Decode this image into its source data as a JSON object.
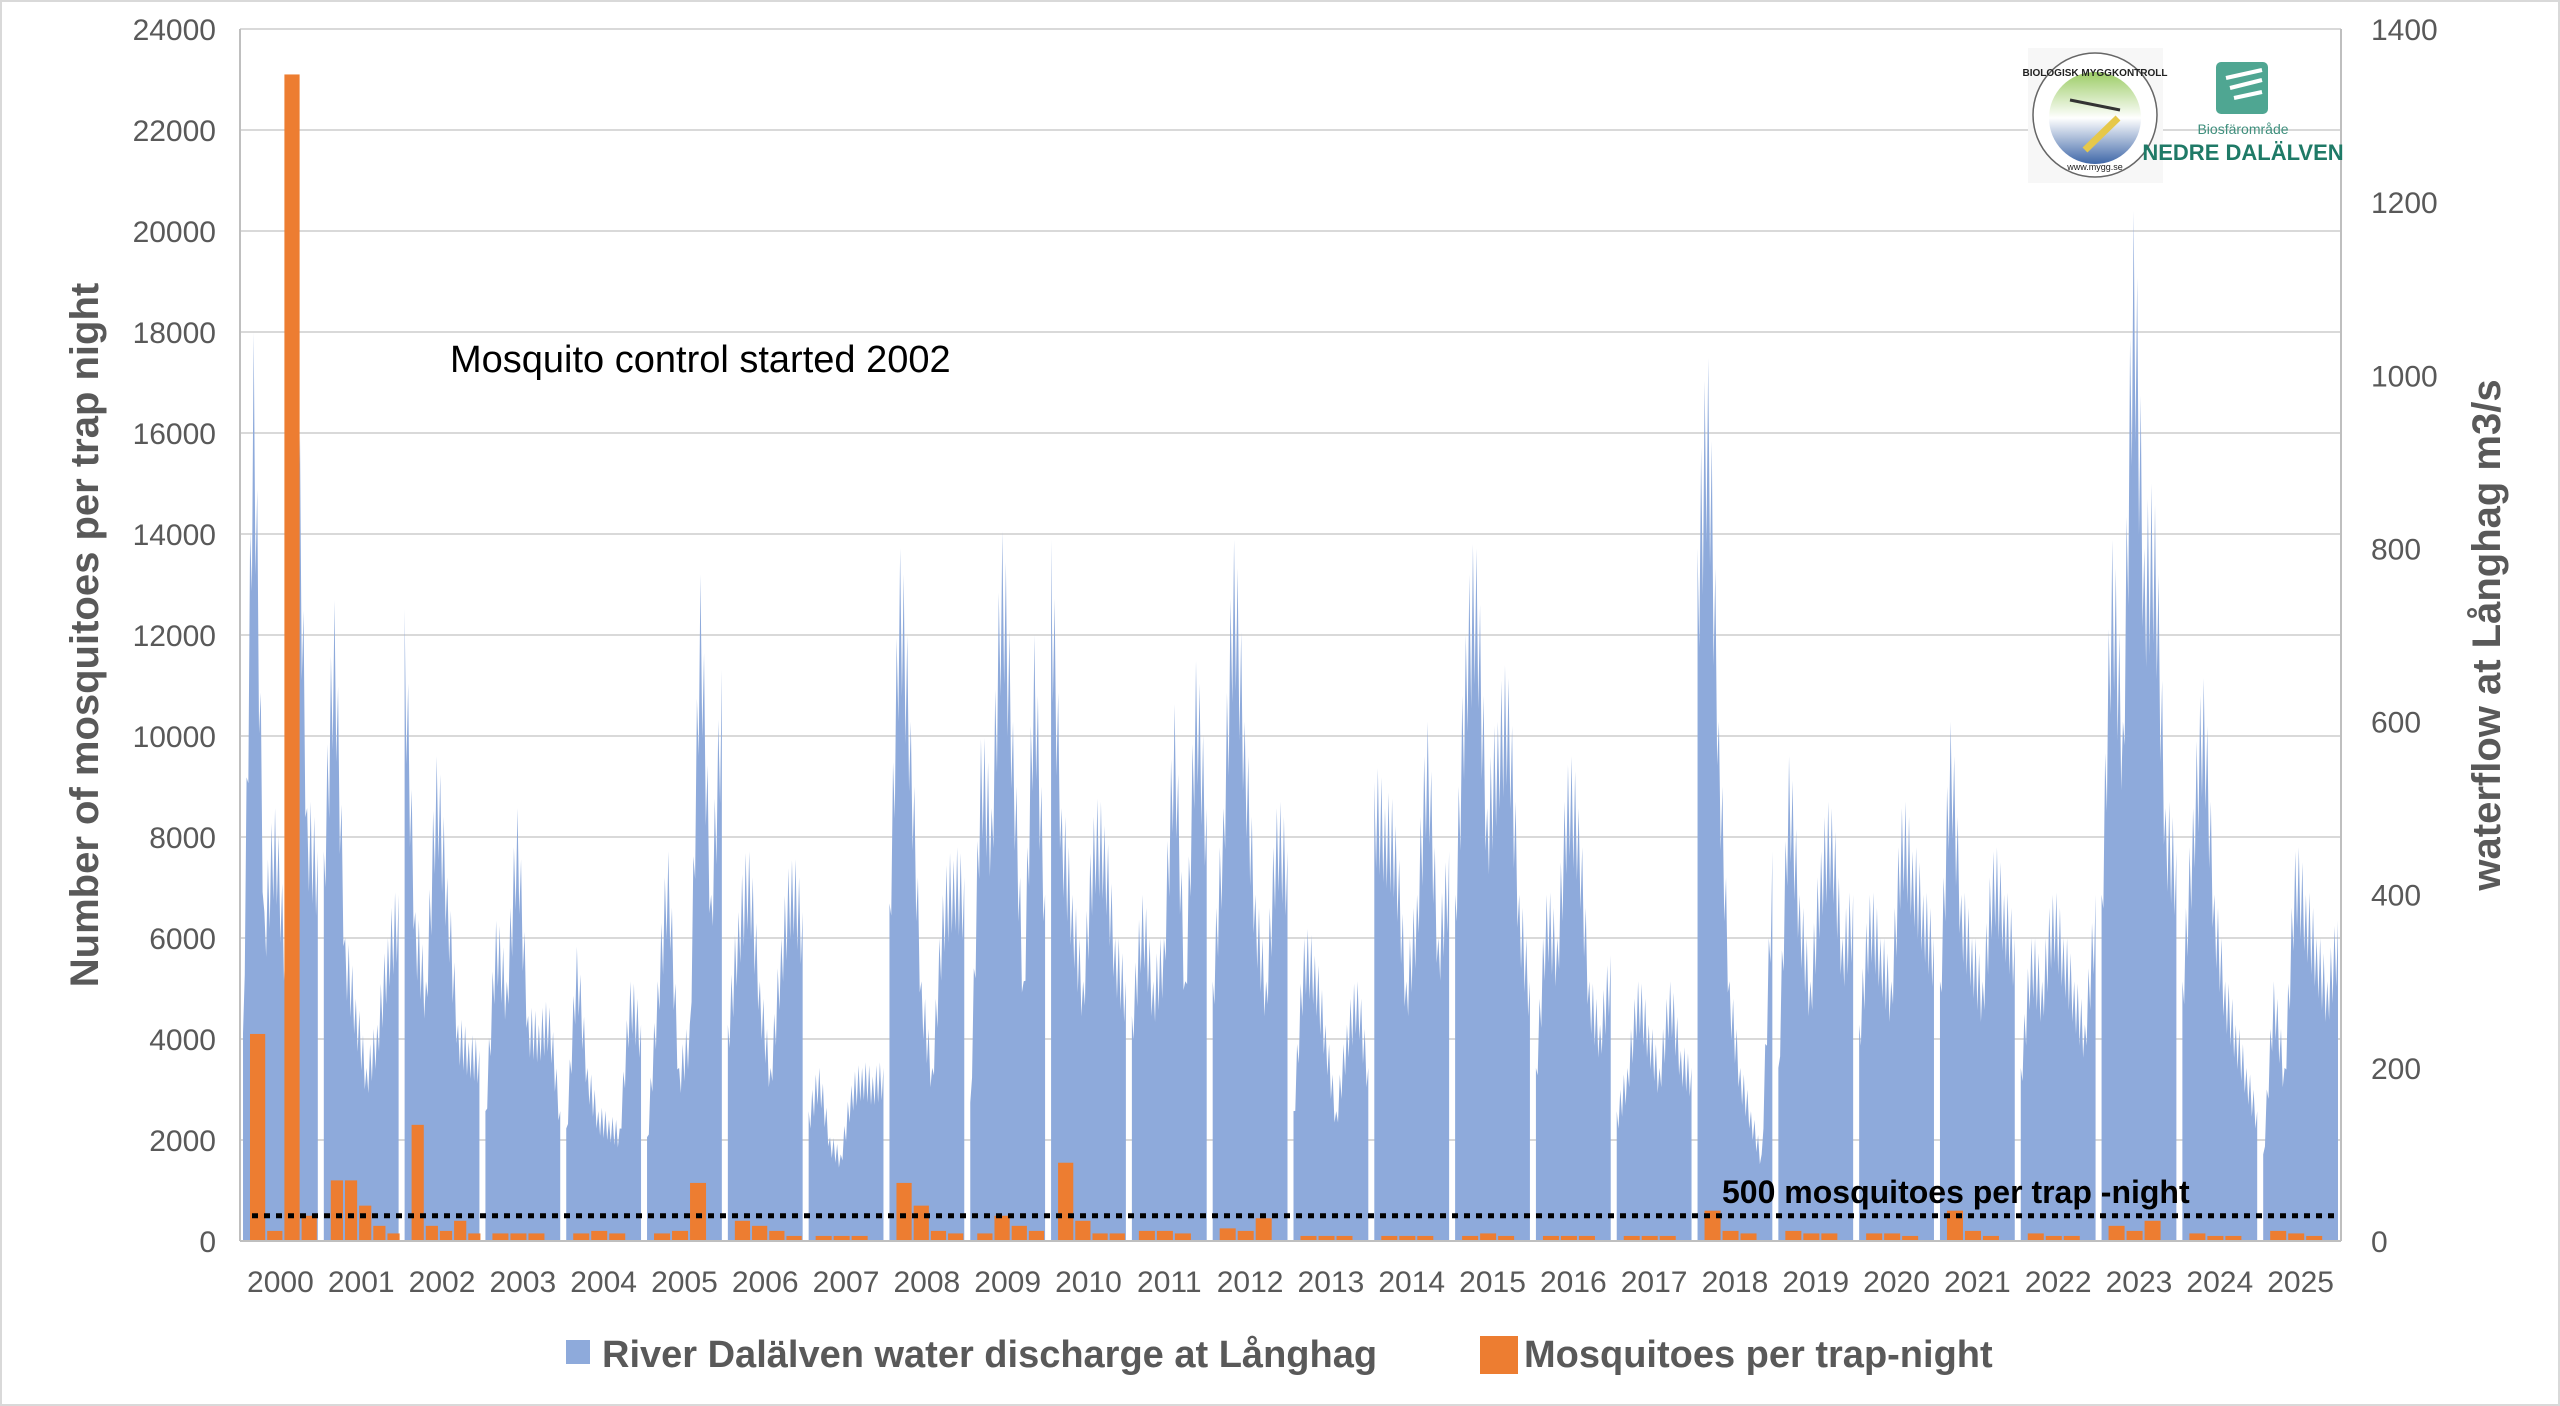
{
  "chart_data": {
    "type": "bar",
    "title": "",
    "categories": [
      "2000",
      "2001",
      "2002",
      "2003",
      "2004",
      "2005",
      "2006",
      "2007",
      "2008",
      "2009",
      "2010",
      "2011",
      "2012",
      "2013",
      "2014",
      "2015",
      "2016",
      "2017",
      "2018",
      "2019",
      "2020",
      "2021",
      "2022",
      "2023",
      "2024",
      "2025"
    ],
    "ylabel": "Number of mosquitoes per trap night",
    "y2label": "waterflow at Långhag m3/s",
    "ylim": [
      0,
      24000
    ],
    "y2lim": [
      0,
      1400
    ],
    "yticks": [
      0,
      2000,
      4000,
      6000,
      8000,
      10000,
      12000,
      14000,
      16000,
      18000,
      20000,
      22000,
      24000
    ],
    "y2ticks": [
      0,
      200,
      400,
      600,
      800,
      1000,
      1200,
      1400
    ],
    "grid": true,
    "legend_position": "bottom",
    "series": [
      {
        "name": "River Dalälven water discharge at Långhag",
        "type": "area",
        "axis": "right",
        "color": "#8eaadb",
        "values_per_year": [
          [
            240,
            1050,
            380,
            500,
            340,
            1080,
            500,
            450
          ],
          [
            450,
            740,
            350,
            280,
            200,
            250,
            350,
            400
          ],
          [
            730,
            380,
            300,
            560,
            420,
            250,
            230,
            220
          ],
          [
            150,
            370,
            300,
            500,
            260,
            250,
            270,
            150
          ],
          [
            130,
            340,
            200,
            150,
            140,
            130,
            300,
            250
          ],
          [
            120,
            300,
            450,
            200,
            250,
            770,
            400,
            660
          ],
          [
            250,
            380,
            450,
            300,
            200,
            350,
            440,
            380
          ],
          [
            150,
            200,
            120,
            100,
            180,
            200,
            190,
            200
          ],
          [
            390,
            800,
            600,
            300,
            200,
            400,
            440,
            420
          ],
          [
            160,
            580,
            500,
            820,
            600,
            300,
            700,
            400
          ],
          [
            810,
            500,
            400,
            300,
            490,
            480,
            350,
            300
          ],
          [
            260,
            400,
            300,
            350,
            620,
            300,
            670,
            500
          ],
          [
            300,
            500,
            810,
            600,
            400,
            300,
            500,
            450
          ],
          [
            150,
            350,
            330,
            250,
            150,
            250,
            300,
            200
          ],
          [
            530,
            500,
            480,
            300,
            400,
            600,
            350,
            450
          ],
          [
            400,
            700,
            800,
            500,
            600,
            650,
            400,
            300
          ],
          [
            200,
            400,
            350,
            550,
            500,
            300,
            250,
            330
          ],
          [
            150,
            200,
            300,
            250,
            200,
            300,
            220,
            200
          ],
          [
            800,
            1020,
            600,
            300,
            200,
            150,
            100,
            450
          ],
          [
            200,
            560,
            400,
            300,
            450,
            500,
            350,
            400
          ],
          [
            250,
            400,
            350,
            300,
            500,
            450,
            400,
            350
          ],
          [
            300,
            600,
            400,
            350,
            300,
            450,
            400,
            350
          ],
          [
            200,
            350,
            300,
            400,
            350,
            300,
            250,
            400
          ],
          [
            400,
            810,
            600,
            1190,
            800,
            850,
            500,
            450
          ],
          [
            300,
            500,
            650,
            400,
            300,
            250,
            200,
            150
          ],
          [
            100,
            300,
            200,
            450,
            400,
            350,
            300,
            370
          ]
        ]
      },
      {
        "name": "Mosquitoes per trap-night",
        "type": "bar",
        "axis": "left",
        "color": "#ed7d31",
        "values_per_year": [
          [
            4100,
            200,
            23100,
            500
          ],
          [
            1200,
            1200,
            700,
            300,
            150
          ],
          [
            2300,
            300,
            200,
            400,
            150
          ],
          [
            150,
            150,
            150
          ],
          [
            150,
            200,
            150
          ],
          [
            150,
            200,
            1150
          ],
          [
            400,
            300,
            200,
            100
          ],
          [
            100,
            100,
            100
          ],
          [
            1150,
            700,
            200,
            150
          ],
          [
            150,
            500,
            300,
            200
          ],
          [
            1550,
            400,
            150,
            150
          ],
          [
            200,
            200,
            150
          ],
          [
            250,
            200,
            450
          ],
          [
            100,
            100,
            100
          ],
          [
            100,
            100,
            100
          ],
          [
            100,
            150,
            100
          ],
          [
            100,
            100,
            100
          ],
          [
            100,
            100,
            100
          ],
          [
            600,
            200,
            150
          ],
          [
            200,
            150,
            150
          ],
          [
            150,
            150,
            100
          ],
          [
            600,
            200,
            100
          ],
          [
            150,
            100,
            100
          ],
          [
            300,
            200,
            400
          ],
          [
            150,
            100,
            100
          ],
          [
            200,
            150,
            100
          ]
        ]
      }
    ],
    "threshold": {
      "value": 500,
      "label": "500 mosquitoes per trap -night"
    },
    "annotations": [
      "Mosquito control started 2002"
    ]
  },
  "logos": {
    "left": {
      "text": "BIOLOGISK MYGGKONTROLL",
      "url_text": "www.mygg.se"
    },
    "right": {
      "small": "Biosfärområde",
      "big": "NEDRE DALÄLVEN"
    }
  }
}
